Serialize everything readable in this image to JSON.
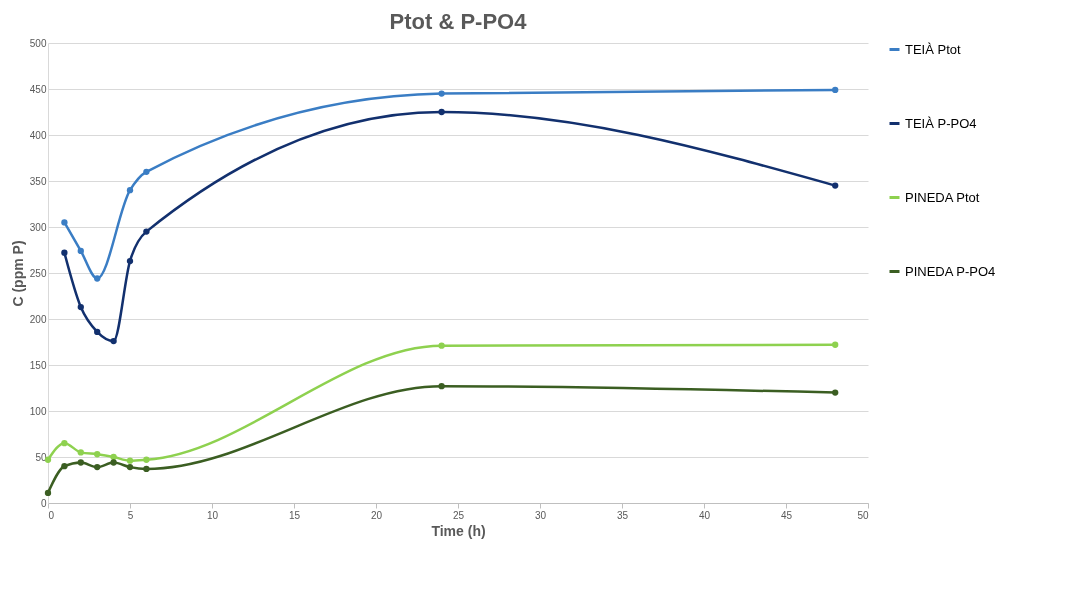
{
  "chart_data": {
    "type": "line",
    "title": "Ptot & P-PO4",
    "xlabel": "Time (h)",
    "ylabel": "C (ppm P)",
    "xlim": [
      0,
      50
    ],
    "xticks": [
      0,
      5,
      10,
      15,
      20,
      25,
      30,
      35,
      40,
      45,
      50
    ],
    "ylim": [
      0,
      500
    ],
    "yticks": [
      0,
      50,
      100,
      150,
      200,
      250,
      300,
      350,
      400,
      450,
      500
    ],
    "grid": "y",
    "legend": "right",
    "marker": "circle",
    "line_style": "solid",
    "series": [
      {
        "name": "TEIÀ Ptot",
        "color": "#3a7dc4",
        "x": [
          1,
          2,
          3,
          5,
          6,
          24,
          48
        ],
        "values": [
          305,
          274,
          244,
          340,
          360,
          445,
          449
        ]
      },
      {
        "name": "TEIÀ P-PO4",
        "color": "#12306e",
        "x": [
          1,
          2,
          3,
          4,
          5,
          6,
          24,
          48
        ],
        "values": [
          272,
          213,
          186,
          176,
          263,
          295,
          425,
          345
        ]
      },
      {
        "name": "PINEDA Ptot",
        "color": "#8ed14f",
        "x": [
          0,
          1,
          2,
          3,
          4,
          5,
          6,
          24,
          48
        ],
        "values": [
          47,
          65,
          55,
          53,
          50,
          46,
          47,
          171,
          172
        ]
      },
      {
        "name": "PINEDA P-PO4",
        "color": "#3b5e22",
        "x": [
          0,
          1,
          2,
          3,
          4,
          5,
          6,
          24,
          48
        ],
        "values": [
          11,
          40,
          44,
          39,
          44,
          39,
          37,
          127,
          120
        ]
      }
    ]
  }
}
